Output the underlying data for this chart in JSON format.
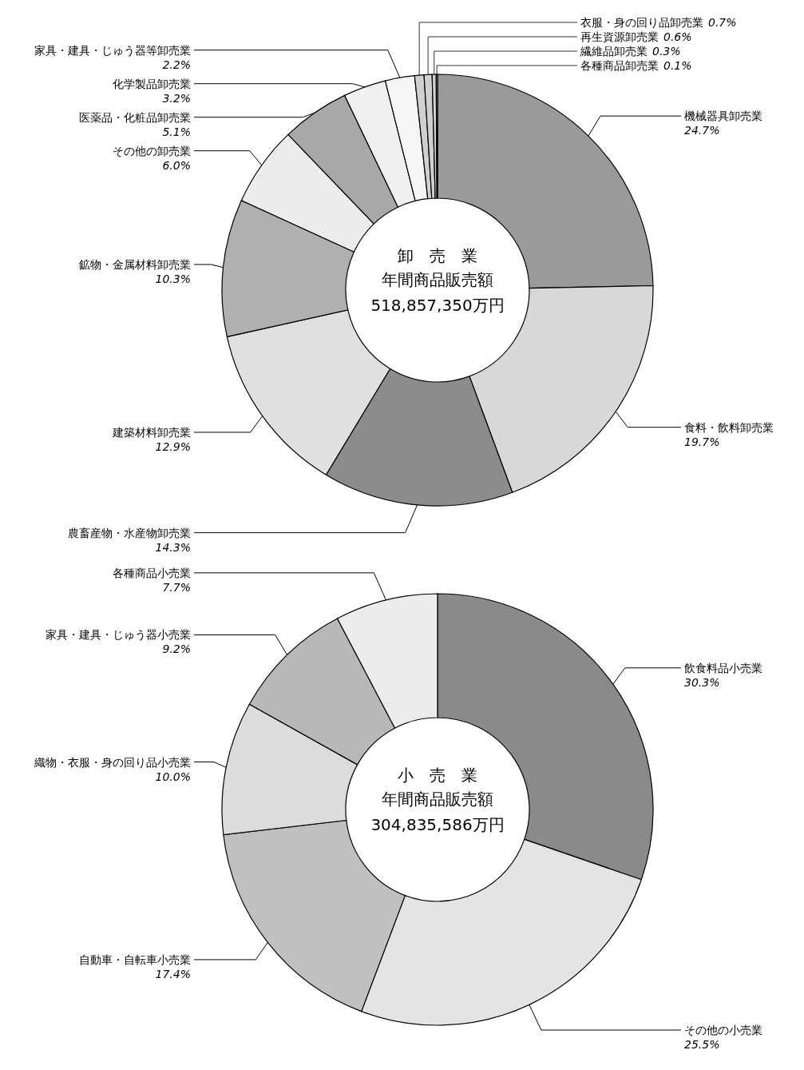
{
  "chart_data": [
    {
      "type": "donut",
      "title": "卸　売　業",
      "subtitle": "年間商品販売額",
      "annotations": [
        "518,857,350万円"
      ],
      "categories": [
        "機械器具卸売業",
        "食料・飲料卸売業",
        "農畜産物・水産物卸売業",
        "建築材料卸売業",
        "鉱物・金属材料卸売業",
        "その他の卸売業",
        "医薬品・化粧品卸売業",
        "化学製品卸売業",
        "家具・建具・じゅう器等卸売業",
        "衣服・身の回り品卸売業",
        "再生資源卸売業",
        "繊維品卸売業",
        "各種商品卸売業"
      ],
      "values": [
        24.7,
        19.7,
        14.3,
        12.9,
        10.3,
        6.0,
        5.1,
        3.2,
        2.2,
        0.7,
        0.6,
        0.3,
        0.1
      ],
      "value_labels": [
        "24.7%",
        "19.7%",
        "14.3%",
        "12.9%",
        "10.3%",
        "6.0%",
        "5.1%",
        "3.2%",
        "2.2%",
        "0.7%",
        "0.6%",
        "0.3%",
        "0.1%"
      ],
      "colors": [
        "#9a9a9a",
        "#d8d8d8",
        "#8c8c8c",
        "#e0e0e0",
        "#b0b0b0",
        "#ececec",
        "#a8a8a8",
        "#f0f0f0",
        "#f5f5f5",
        "#d0d0d0",
        "#d0d0d0",
        "#d0d0d0",
        "#d0d0d0"
      ]
    },
    {
      "type": "donut",
      "title": "小　売　業",
      "subtitle": "年間商品販売額",
      "annotations": [
        "304,835,586万円"
      ],
      "categories": [
        "飲食料品小売業",
        "その他の小売業",
        "自動車・自転車小売業",
        "織物・衣服・身の回り品小売業",
        "家具・建具・じゅう器小売業",
        "各種商品小売業"
      ],
      "values": [
        30.3,
        25.5,
        17.4,
        10.0,
        9.2,
        7.7
      ],
      "value_labels": [
        "30.3%",
        "25.5%",
        "17.4%",
        "10.0%",
        "9.2%",
        "7.7%"
      ],
      "colors": [
        "#8a8a8a",
        "#e4e4e4",
        "#c0c0c0",
        "#dcdcdc",
        "#b8b8b8",
        "#ececec"
      ]
    }
  ]
}
